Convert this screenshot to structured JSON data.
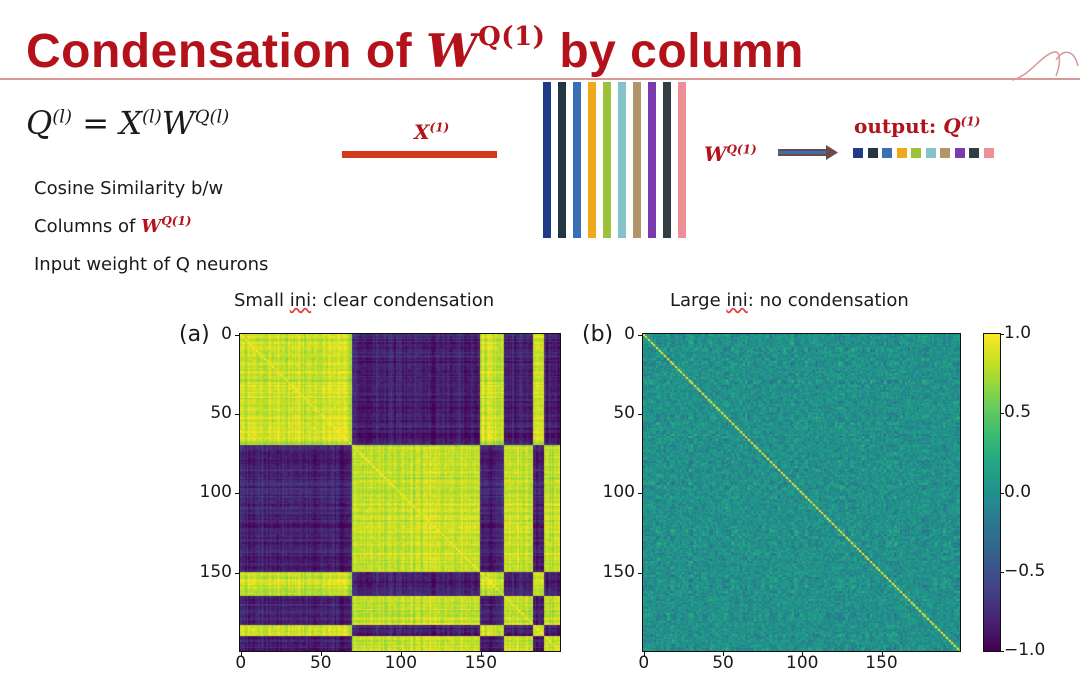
{
  "slide": {
    "title_prefix": "Condensation of ",
    "title_symbol": "W",
    "title_superscript": "Q(1)",
    "title_suffix": " by column",
    "formula": {
      "q": "Q",
      "x": "X",
      "w": "W",
      "l_sup": "(l)",
      "ql_sup": "Q(l)",
      "equals": "="
    },
    "desc_line1": "Cosine Similarity b/w",
    "desc_line2_prefix": "Columns of ",
    "desc_line2_symbol": "W",
    "desc_line2_sup": "Q(1)",
    "desc_line3": "Input weight of Q neurons"
  },
  "diagram": {
    "x_label": "X",
    "x_sup": "(1)",
    "wq_label": "W",
    "wq_sup": "Q(1)",
    "output_text": "output: ",
    "output_symbol": "Q",
    "output_sup": "(1)",
    "column_colors": [
      "#1f3b8a",
      "#243640",
      "#3a6fb8",
      "#f0a81c",
      "#9cc23a",
      "#86c2c9",
      "#b0966a",
      "#7a3bb0",
      "#2f3f44",
      "#ee8f96"
    ],
    "bar_color": "#d23a1c",
    "arrow_color": "#6b4a4a"
  },
  "chart_data": [
    {
      "type": "heatmap",
      "panel_label": "(a)",
      "title_prefix": "Small ",
      "title_underlined": "ini",
      "title_suffix": ": clear condensation",
      "n": 200,
      "xlim": [
        0,
        200
      ],
      "ylim": [
        0,
        200
      ],
      "x_ticks": [
        "0",
        "50",
        "100",
        "150"
      ],
      "y_ticks": [
        "0",
        "50",
        "100",
        "150"
      ],
      "tick_values": [
        0,
        50,
        100,
        150
      ],
      "clusters": [
        {
          "start": 0,
          "end": 70,
          "group": "A"
        },
        {
          "start": 70,
          "end": 150,
          "group": "B"
        },
        {
          "start": 150,
          "end": 165,
          "group": "A"
        },
        {
          "start": 165,
          "end": 183,
          "group": "B"
        },
        {
          "start": 183,
          "end": 190,
          "group": "A"
        },
        {
          "start": 190,
          "end": 200,
          "group": "B"
        }
      ]
    },
    {
      "type": "heatmap",
      "panel_label": "(b)",
      "title_prefix": "Large ",
      "title_underlined": "ini",
      "title_suffix": ": no condensation",
      "n": 200,
      "xlim": [
        0,
        200
      ],
      "ylim": [
        0,
        200
      ],
      "x_ticks": [
        "0",
        "50",
        "100",
        "150"
      ],
      "y_ticks": [
        "0",
        "50",
        "100",
        "150"
      ],
      "tick_values": [
        0,
        50,
        100,
        150
      ],
      "pattern": "near-zero random with unit diagonal"
    }
  ],
  "colorbar": {
    "range": [
      -1.0,
      1.0
    ],
    "tick_values": [
      1.0,
      0.5,
      0.0,
      -0.5,
      -1.0
    ],
    "tick_labels": [
      "1.0",
      "0.5",
      "0.0",
      "−0.5",
      "−1.0"
    ],
    "colormap": "viridis"
  }
}
